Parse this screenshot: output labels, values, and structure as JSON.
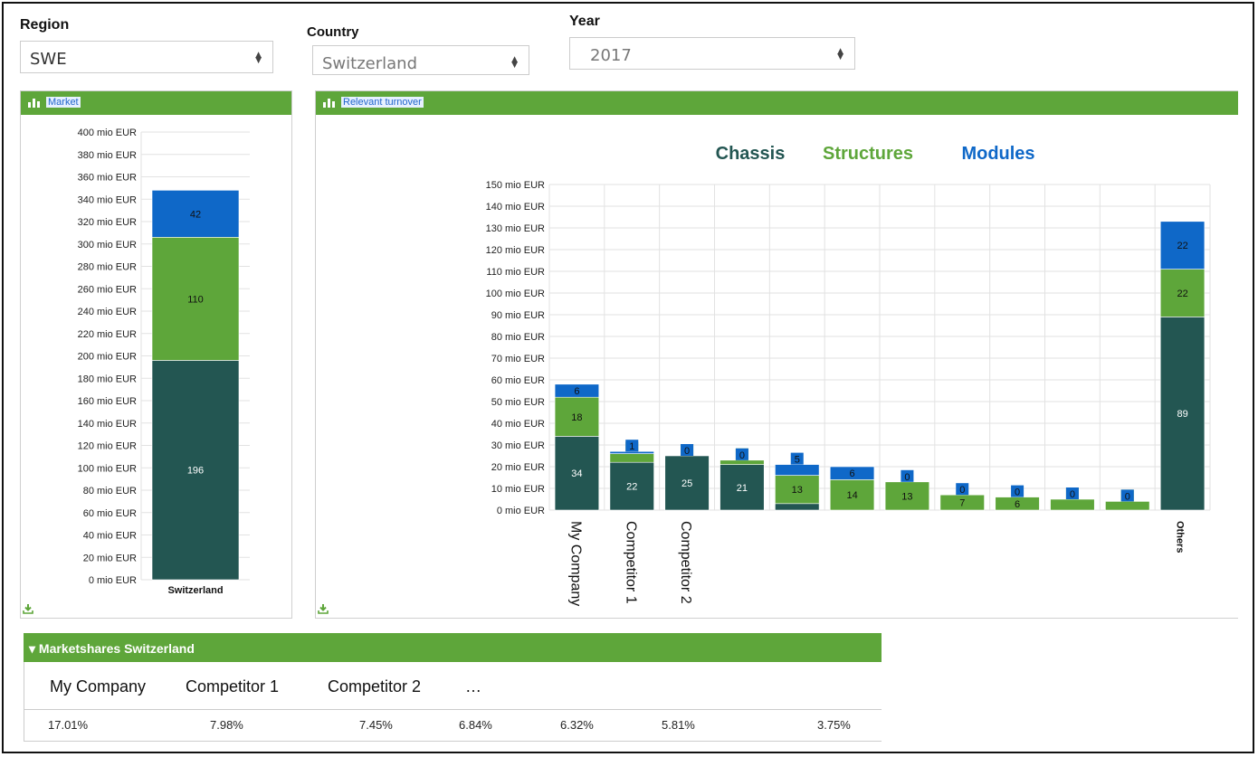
{
  "filters": {
    "region": {
      "label": "Region",
      "value": "SWE"
    },
    "country": {
      "label": "Country",
      "value": "Switzerland"
    },
    "year": {
      "label": "Year",
      "value": "2017"
    }
  },
  "colors": {
    "chassis": "#235652",
    "structures": "#5ea63a",
    "modules": "#0f68c8",
    "panel_header": "#5ea63a"
  },
  "market_panel": {
    "title": "Market"
  },
  "turnover_panel": {
    "title": "Relevant turnover"
  },
  "chart_data": [
    {
      "type": "bar",
      "stacked": true,
      "title": "Market",
      "categories": [
        "Switzerland"
      ],
      "series": [
        {
          "values": [
            196
          ],
          "color": "#235652"
        },
        {
          "values": [
            110
          ],
          "color": "#5ea63a"
        },
        {
          "values": [
            42
          ],
          "color": "#0f68c8"
        }
      ],
      "ylim": [
        0,
        400
      ],
      "ytick_step": 20,
      "ytick_suffix": " mio EUR",
      "grid": true
    },
    {
      "type": "bar",
      "stacked": true,
      "title": "Relevant turnover",
      "legend": [
        "Chassis",
        "Structures",
        "Modules"
      ],
      "categories": [
        "My Company",
        "Competitor 1",
        "Competitor 2",
        "",
        "",
        "",
        "",
        "",
        "",
        "",
        "",
        "Others"
      ],
      "series": [
        {
          "name": "Chassis",
          "values": [
            34,
            22,
            25,
            21,
            3,
            0,
            0,
            0,
            0,
            0,
            0,
            89
          ],
          "color": "#235652"
        },
        {
          "name": "Structures",
          "values": [
            18,
            4,
            0,
            2,
            13,
            14,
            13,
            7,
            6,
            5,
            4,
            22
          ],
          "color": "#5ea63a"
        },
        {
          "name": "Modules",
          "values": [
            6,
            1,
            0,
            0,
            5,
            6,
            0,
            0,
            0,
            0,
            0,
            22
          ],
          "color": "#0f68c8"
        }
      ],
      "ylim": [
        0,
        150
      ],
      "ytick_step": 10,
      "ytick_suffix": " mio EUR",
      "grid": true
    }
  ],
  "marketshares": {
    "title": "Marketshares Switzerland",
    "names": [
      "My Company",
      "Competitor 1",
      "Competitor 2",
      "…"
    ],
    "values": [
      "17.01%",
      "7.98%",
      "7.45%",
      "6.84%",
      "6.32%",
      "5.81%",
      "3.75%"
    ]
  }
}
